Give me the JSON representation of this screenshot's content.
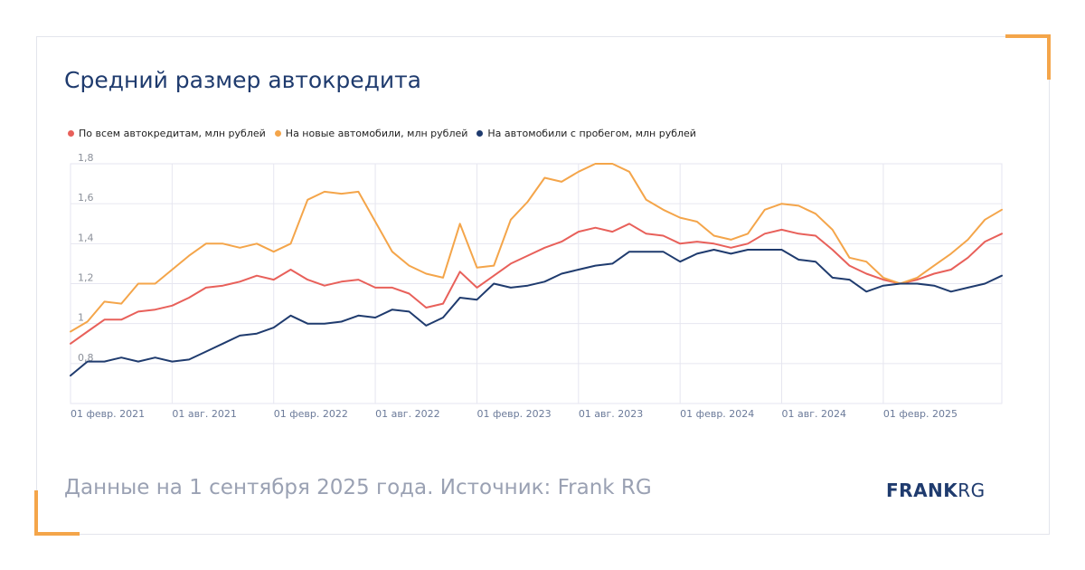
{
  "title": "Средний размер автокредита",
  "footer": "Данные на 1 сентября 2025 года. Источник: Frank RG",
  "logo": {
    "bold": "FRANK",
    "light": "RG"
  },
  "colors": {
    "accent": "#f4a54a",
    "title": "#1f3b6e"
  },
  "chart_data": {
    "type": "line",
    "title": "Средний размер автокредита",
    "grid": true,
    "legend_position": "top-left",
    "ylim": [
      0.6,
      1.8
    ],
    "y_ticks": [
      "0,8",
      "1",
      "1,2",
      "1,4",
      "1,6",
      "1,8"
    ],
    "y_tick_values": [
      0.8,
      1.0,
      1.2,
      1.4,
      1.6,
      1.8
    ],
    "x_tick_labels": [
      "01 февр. 2021",
      "01 авг. 2021",
      "01 февр. 2022",
      "01 авг. 2022",
      "01 февр. 2023",
      "01 авг. 2023",
      "01 февр. 2024",
      "01 авг. 2024",
      "01 февр. 2025"
    ],
    "x_tick_index": [
      0,
      6,
      12,
      18,
      24,
      30,
      36,
      42,
      48
    ],
    "x": [
      "2021-01",
      "2021-02",
      "2021-03",
      "2021-04",
      "2021-05",
      "2021-06",
      "2021-07",
      "2021-08",
      "2021-09",
      "2021-10",
      "2021-11",
      "2021-12",
      "2022-01",
      "2022-02",
      "2022-03",
      "2022-04",
      "2022-05",
      "2022-06",
      "2022-07",
      "2022-08",
      "2022-09",
      "2022-10",
      "2022-11",
      "2022-12",
      "2023-01",
      "2023-02",
      "2023-03",
      "2023-04",
      "2023-05",
      "2023-06",
      "2023-07",
      "2023-08",
      "2023-09",
      "2023-10",
      "2023-11",
      "2023-12",
      "2024-01",
      "2024-02",
      "2024-03",
      "2024-04",
      "2024-05",
      "2024-06",
      "2024-07",
      "2024-08",
      "2024-09",
      "2024-10",
      "2024-11",
      "2024-12",
      "2025-01",
      "2025-02",
      "2025-03",
      "2025-04",
      "2025-05",
      "2025-06",
      "2025-07",
      "2025-08"
    ],
    "series": [
      {
        "name": "По всем автокредитам, млн рублей",
        "color": "#e8605a",
        "values": [
          0.9,
          0.96,
          1.02,
          1.02,
          1.06,
          1.07,
          1.09,
          1.13,
          1.18,
          1.19,
          1.21,
          1.24,
          1.22,
          1.27,
          1.22,
          1.19,
          1.21,
          1.22,
          1.18,
          1.18,
          1.15,
          1.08,
          1.1,
          1.26,
          1.18,
          1.24,
          1.3,
          1.34,
          1.38,
          1.41,
          1.46,
          1.48,
          1.46,
          1.5,
          1.45,
          1.44,
          1.4,
          1.41,
          1.4,
          1.38,
          1.4,
          1.45,
          1.47,
          1.45,
          1.44,
          1.37,
          1.29,
          1.25,
          1.22,
          1.2,
          1.22,
          1.25,
          1.27,
          1.33,
          1.41,
          1.45
        ]
      },
      {
        "name": "На новые автомобили, млн рублей",
        "color": "#f4a54a",
        "values": [
          0.96,
          1.01,
          1.11,
          1.1,
          1.2,
          1.2,
          1.27,
          1.34,
          1.4,
          1.4,
          1.38,
          1.4,
          1.36,
          1.4,
          1.62,
          1.66,
          1.65,
          1.66,
          1.51,
          1.36,
          1.29,
          1.25,
          1.23,
          1.5,
          1.28,
          1.29,
          1.52,
          1.61,
          1.73,
          1.71,
          1.76,
          1.8,
          1.8,
          1.76,
          1.62,
          1.57,
          1.53,
          1.51,
          1.44,
          1.42,
          1.45,
          1.57,
          1.6,
          1.59,
          1.55,
          1.47,
          1.33,
          1.31,
          1.23,
          1.2,
          1.23,
          1.29,
          1.35,
          1.42,
          1.52,
          1.57
        ]
      },
      {
        "name": "На автомобили с пробегом, млн рублей",
        "color": "#1f3b6e",
        "values": [
          0.74,
          0.81,
          0.81,
          0.83,
          0.81,
          0.83,
          0.81,
          0.82,
          0.86,
          0.9,
          0.94,
          0.95,
          0.98,
          1.04,
          1.0,
          1.0,
          1.01,
          1.04,
          1.03,
          1.07,
          1.06,
          0.99,
          1.03,
          1.13,
          1.12,
          1.2,
          1.18,
          1.19,
          1.21,
          1.25,
          1.27,
          1.29,
          1.3,
          1.36,
          1.36,
          1.36,
          1.31,
          1.35,
          1.37,
          1.35,
          1.37,
          1.37,
          1.37,
          1.32,
          1.31,
          1.23,
          1.22,
          1.16,
          1.19,
          1.2,
          1.2,
          1.19,
          1.16,
          1.18,
          1.2,
          1.24
        ]
      }
    ]
  }
}
